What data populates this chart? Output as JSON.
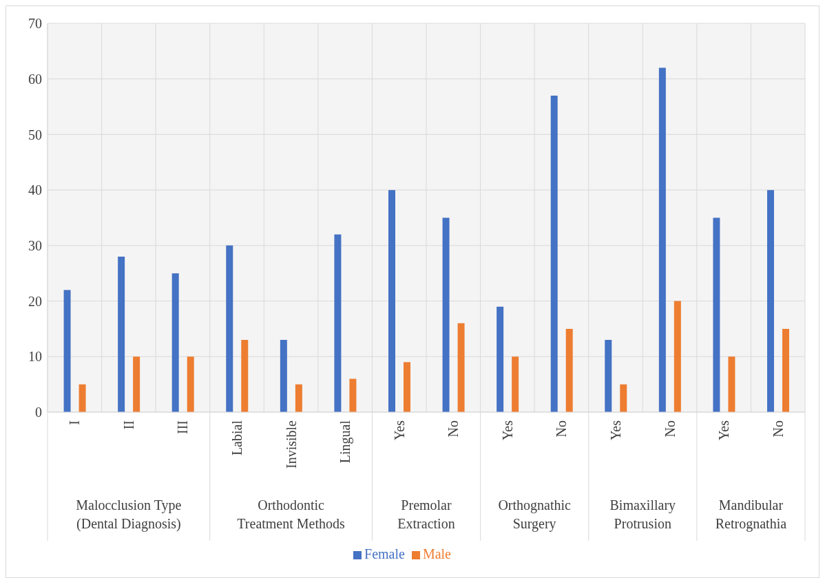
{
  "chart_data": {
    "type": "bar",
    "categories": [
      "I",
      "II",
      "III",
      "Labial",
      "Invisible",
      "Lingual",
      "Yes",
      "No",
      "Yes",
      "No",
      "Yes",
      "No",
      "Yes",
      "No"
    ],
    "series": [
      {
        "name": "Female",
        "color": "#4472c4",
        "values": [
          22,
          28,
          25,
          30,
          13,
          32,
          40,
          35,
          19,
          57,
          13,
          62,
          35,
          40
        ]
      },
      {
        "name": "Male",
        "color": "#ed7d31",
        "values": [
          5,
          10,
          10,
          13,
          5,
          6,
          9,
          16,
          10,
          15,
          5,
          20,
          10,
          15
        ]
      }
    ],
    "annotations": [
      "Malocclusion Type (Dental Diagnosis)",
      "Orthodontic Treatment Methods",
      "Premolar Extraction",
      "Orthognathic Surgery",
      "Bimaxillary Protrusion",
      "Mandibular Retrognathia"
    ],
    "ylim": [
      0,
      70
    ],
    "yticks": [
      0,
      10,
      20,
      30,
      40,
      50,
      60,
      70
    ],
    "grid": true,
    "legend": "bottom"
  }
}
